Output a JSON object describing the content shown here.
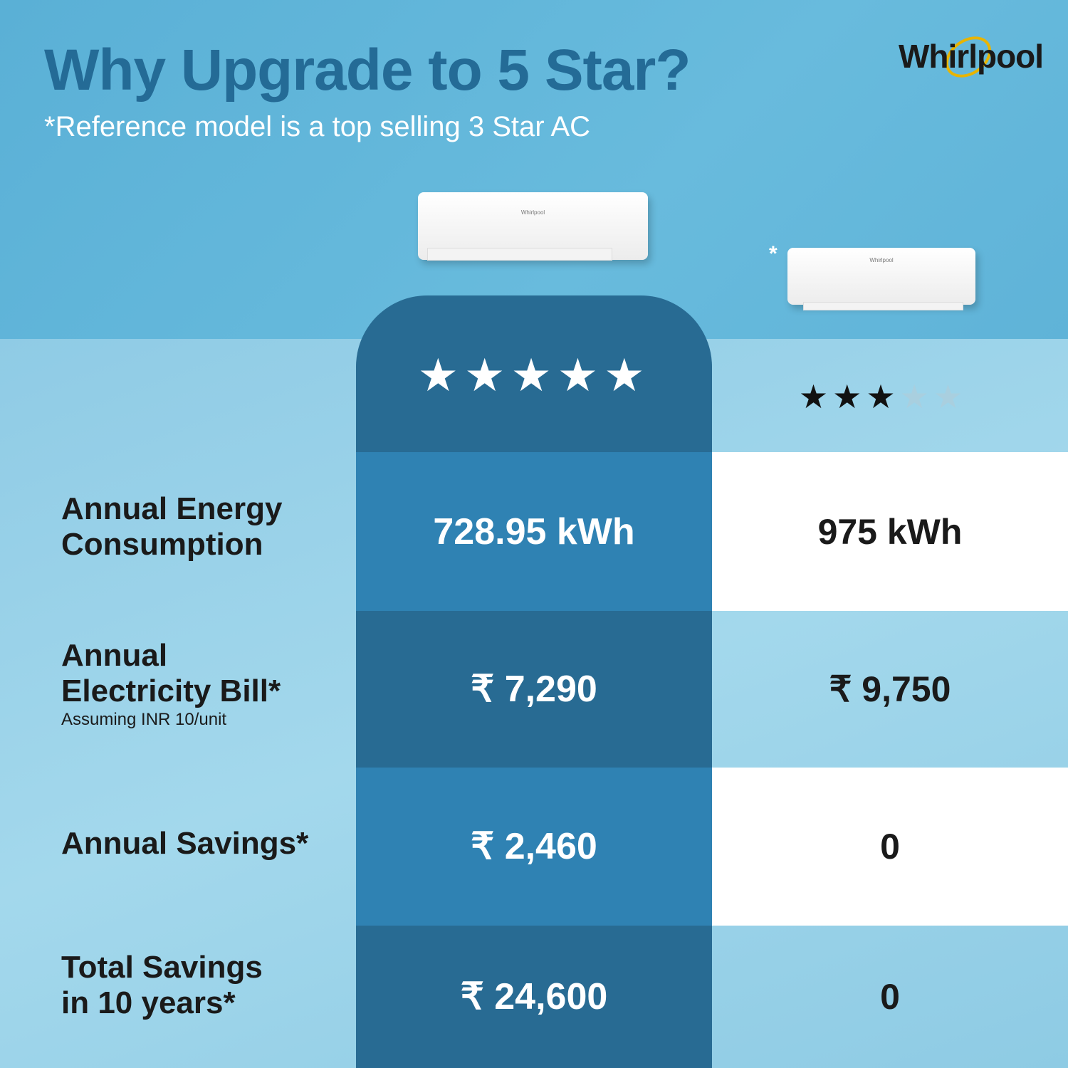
{
  "header": {
    "title": "Why Upgrade to 5 Star?",
    "subtitle": "*Reference model is a top selling 3 Star AC",
    "logo": "Whirlpool"
  },
  "products": {
    "five_star": {
      "brand": "Whirlpool",
      "rating": 5,
      "max_rating": 5,
      "star_icon": "star-icon"
    },
    "reference": {
      "brand": "Whirlpool",
      "marker": "*",
      "rating": 3,
      "max_rating": 5
    }
  },
  "rows": [
    {
      "label_lines": [
        "Annual Energy",
        "Consumption"
      ],
      "note": "",
      "five_star": "728.95 kWh",
      "reference": "975 kWh"
    },
    {
      "label_lines": [
        "Annual",
        "Electricity Bill*"
      ],
      "note": "Assuming INR 10/unit",
      "five_star": "₹ 7,290",
      "reference": "₹ 9,750"
    },
    {
      "label_lines": [
        "Annual Savings*"
      ],
      "note": "",
      "five_star": "₹ 2,460",
      "reference": "0"
    },
    {
      "label_lines": [
        "Total Savings",
        "in 10 years*"
      ],
      "note": "",
      "five_star": "₹ 24,600",
      "reference": "0"
    }
  ],
  "colors": {
    "title": "#246b96",
    "column_dark": "#286b93",
    "column_mid": "#2f82b3",
    "logo_ring": "#e8b400"
  }
}
